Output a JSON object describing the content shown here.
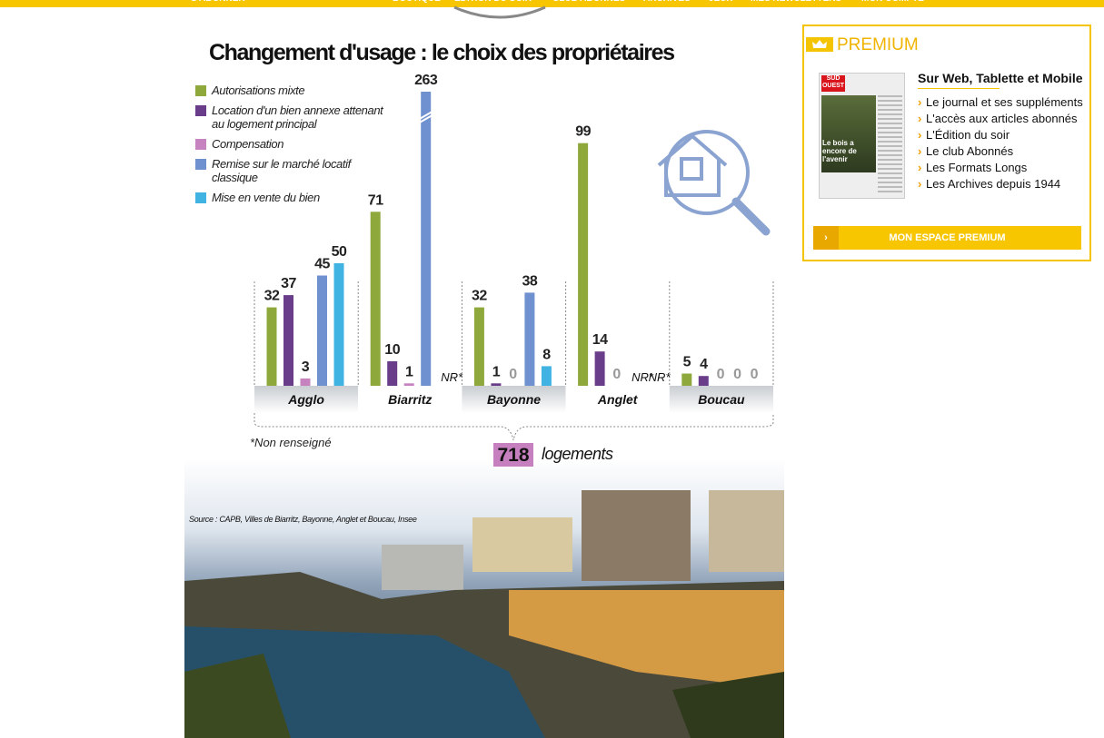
{
  "nav": {
    "items": [
      "S'ABONNER",
      "BOUTIQUE",
      "ÉDITION DU SOIR",
      "CLUB ABONNÉS",
      "ARCHIVES",
      "JEUX",
      "MES NEWSLETTERS",
      "MON COMPTE"
    ]
  },
  "chart_data": {
    "type": "bar",
    "title": "Changement d'usage : le choix des propriétaires",
    "categories": [
      "Agglo",
      "Biarritz",
      "Bayonne",
      "Anglet",
      "Boucau"
    ],
    "series": [
      {
        "name": "Autorisations mixte",
        "color": "#8ea83b",
        "values": [
          32,
          71,
          32,
          99,
          5
        ]
      },
      {
        "name": "Location d'un bien annexe attenant au logement principal",
        "color": "#6a3d8b",
        "values": [
          37,
          10,
          1,
          14,
          4
        ]
      },
      {
        "name": "Compensation",
        "color": "#c683c0",
        "values": [
          3,
          1,
          0,
          0,
          0
        ]
      },
      {
        "name": "Remise sur le marché locatif classique",
        "color": "#7091d0",
        "values": [
          45,
          263,
          38,
          null,
          0
        ],
        "value_labels": [
          "45",
          "263",
          "38",
          "NR*",
          "0"
        ]
      },
      {
        "name": "Mise en vente du bien",
        "color": "#40b3e3",
        "values": [
          50,
          null,
          8,
          null,
          0
        ],
        "value_labels": [
          "50",
          "NR*",
          "8",
          "NR*",
          "0"
        ]
      }
    ],
    "ylim": [
      0,
      120
    ],
    "axis_break": true,
    "footnote": "*Non renseigné",
    "total": {
      "value": 718,
      "label": "logements"
    },
    "source": "Source : CAPB, Villes de Biarritz, Bayonne, Anglet et Boucau, Insee"
  },
  "sidebar": {
    "title": "PREMIUM",
    "thumbnail": {
      "masthead": "SUD OUEST",
      "headline": "Le bois a encore de l'avenir"
    },
    "heading": "Sur Web, Tablette et Mobile",
    "items": [
      "Le journal et ses suppléments",
      "L'accès aux articles abonnés",
      "L'Édition du soir",
      "Le club Abonnés",
      "Les Formats Longs",
      "Les Archives depuis 1944"
    ],
    "button": "MON ESPACE PREMIUM"
  }
}
